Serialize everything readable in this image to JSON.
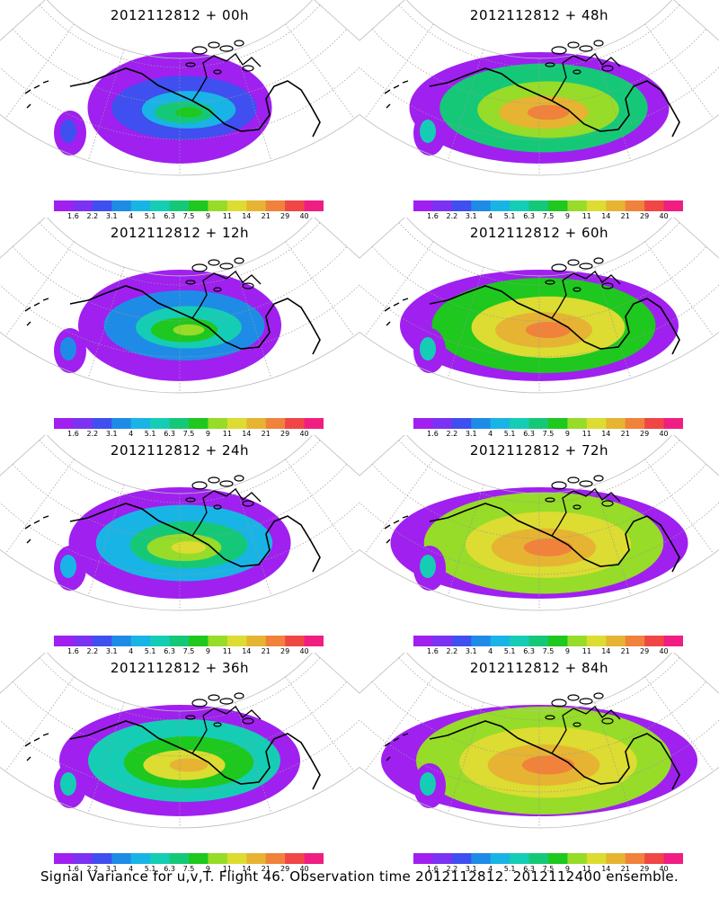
{
  "caption": "Signal Variance for u,v,T. Flight 46. Observation time 2012112812. 2012112400 ensemble.",
  "colorbar": {
    "labels": [
      "1.6",
      "2.2",
      "3.1",
      "4",
      "5.1",
      "6.3",
      "7.5",
      "9",
      "11",
      "14",
      "21",
      "29",
      "40"
    ],
    "colors": [
      "#a020f0",
      "#7b32f2",
      "#3f4ff0",
      "#1e8ce6",
      "#19b4e6",
      "#15cdb4",
      "#15c878",
      "#1ec81e",
      "#96dc28",
      "#dcdc32",
      "#e6b432",
      "#f0823c",
      "#f04646",
      "#f01e82"
    ]
  },
  "panels": [
    {
      "title": "2012112812 + 00h",
      "level": 0
    },
    {
      "title": "2012112812 + 48h",
      "level": 4
    },
    {
      "title": "2012112812 + 12h",
      "level": 1
    },
    {
      "title": "2012112812 + 60h",
      "level": 5
    },
    {
      "title": "2012112812 + 24h",
      "level": 2
    },
    {
      "title": "2012112812 + 72h",
      "level": 6
    },
    {
      "title": "2012112812 + 36h",
      "level": 3
    },
    {
      "title": "2012112812 + 84h",
      "level": 7
    }
  ]
}
